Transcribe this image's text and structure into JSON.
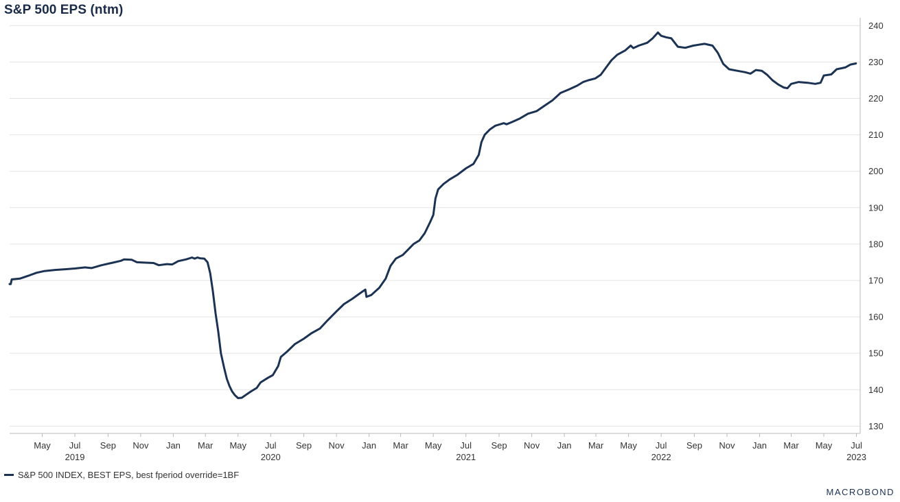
{
  "chart_data": {
    "type": "line",
    "title": "S&P 500 EPS (ntm)",
    "ylim": [
      128,
      241
    ],
    "yticks": [
      130,
      140,
      150,
      160,
      170,
      180,
      190,
      200,
      210,
      220,
      230,
      240
    ],
    "xlim": [
      "2019-03-01",
      "2023-07-08"
    ],
    "month_ticks": [
      {
        "date": "2019-05-01",
        "label": "May"
      },
      {
        "date": "2019-07-01",
        "label": "Jul"
      },
      {
        "date": "2019-09-01",
        "label": "Sep"
      },
      {
        "date": "2019-11-01",
        "label": "Nov"
      },
      {
        "date": "2020-01-01",
        "label": "Jan"
      },
      {
        "date": "2020-03-01",
        "label": "Mar"
      },
      {
        "date": "2020-05-01",
        "label": "May"
      },
      {
        "date": "2020-07-01",
        "label": "Jul"
      },
      {
        "date": "2020-09-01",
        "label": "Sep"
      },
      {
        "date": "2020-11-01",
        "label": "Nov"
      },
      {
        "date": "2021-01-01",
        "label": "Jan"
      },
      {
        "date": "2021-03-01",
        "label": "Mar"
      },
      {
        "date": "2021-05-01",
        "label": "May"
      },
      {
        "date": "2021-07-01",
        "label": "Jul"
      },
      {
        "date": "2021-09-01",
        "label": "Sep"
      },
      {
        "date": "2021-11-01",
        "label": "Nov"
      },
      {
        "date": "2022-01-01",
        "label": "Jan"
      },
      {
        "date": "2022-03-01",
        "label": "Mar"
      },
      {
        "date": "2022-05-01",
        "label": "May"
      },
      {
        "date": "2022-07-01",
        "label": "Jul"
      },
      {
        "date": "2022-09-01",
        "label": "Sep"
      },
      {
        "date": "2022-11-01",
        "label": "Nov"
      },
      {
        "date": "2023-01-01",
        "label": "Jan"
      },
      {
        "date": "2023-03-01",
        "label": "Mar"
      },
      {
        "date": "2023-05-01",
        "label": "May"
      },
      {
        "date": "2023-07-01",
        "label": "Jul"
      }
    ],
    "year_labels": [
      {
        "date": "2019-07-01",
        "label": "2019"
      },
      {
        "date": "2020-07-01",
        "label": "2020"
      },
      {
        "date": "2021-07-01",
        "label": "2021"
      },
      {
        "date": "2022-07-01",
        "label": "2022"
      },
      {
        "date": "2023-07-01",
        "label": "2023"
      }
    ],
    "grid": true,
    "legend_position": "bottom-left",
    "series": [
      {
        "name": "S&P 500 INDEX, BEST EPS, best fperiod override=1BF",
        "color": "#1b3253",
        "points": [
          [
            "2019-03-01",
            169.0
          ],
          [
            "2019-03-03",
            169.0
          ],
          [
            "2019-03-05",
            170.3
          ],
          [
            "2019-03-20",
            170.5
          ],
          [
            "2019-04-05",
            171.3
          ],
          [
            "2019-04-20",
            172.1
          ],
          [
            "2019-05-05",
            172.6
          ],
          [
            "2019-05-25",
            172.9
          ],
          [
            "2019-06-15",
            173.1
          ],
          [
            "2019-07-01",
            173.3
          ],
          [
            "2019-07-20",
            173.6
          ],
          [
            "2019-08-01",
            173.4
          ],
          [
            "2019-08-20",
            174.2
          ],
          [
            "2019-09-10",
            174.9
          ],
          [
            "2019-09-25",
            175.4
          ],
          [
            "2019-10-01",
            175.8
          ],
          [
            "2019-10-15",
            175.7
          ],
          [
            "2019-10-25",
            175.0
          ],
          [
            "2019-11-10",
            174.9
          ],
          [
            "2019-11-25",
            174.8
          ],
          [
            "2019-12-05",
            174.2
          ],
          [
            "2019-12-20",
            174.5
          ],
          [
            "2019-12-30",
            174.4
          ],
          [
            "2020-01-10",
            175.3
          ],
          [
            "2020-01-25",
            175.8
          ],
          [
            "2020-02-05",
            176.3
          ],
          [
            "2020-02-10",
            176.0
          ],
          [
            "2020-02-15",
            176.3
          ],
          [
            "2020-02-20",
            176.1
          ],
          [
            "2020-02-28",
            176.0
          ],
          [
            "2020-03-05",
            175.0
          ],
          [
            "2020-03-10",
            172.0
          ],
          [
            "2020-03-15",
            167.0
          ],
          [
            "2020-03-20",
            161.0
          ],
          [
            "2020-03-25",
            156.0
          ],
          [
            "2020-03-30",
            150.0
          ],
          [
            "2020-04-05",
            146.0
          ],
          [
            "2020-04-10",
            143.0
          ],
          [
            "2020-04-15",
            141.0
          ],
          [
            "2020-04-20",
            139.5
          ],
          [
            "2020-04-25",
            138.5
          ],
          [
            "2020-05-01",
            137.7
          ],
          [
            "2020-05-08",
            137.8
          ],
          [
            "2020-05-15",
            138.5
          ],
          [
            "2020-05-25",
            139.5
          ],
          [
            "2020-06-05",
            140.5
          ],
          [
            "2020-06-12",
            142.0
          ],
          [
            "2020-06-25",
            143.2
          ],
          [
            "2020-07-05",
            144.0
          ],
          [
            "2020-07-15",
            146.5
          ],
          [
            "2020-07-20",
            149.0
          ],
          [
            "2020-08-01",
            150.5
          ],
          [
            "2020-08-15",
            152.5
          ],
          [
            "2020-09-01",
            154.0
          ],
          [
            "2020-09-15",
            155.5
          ],
          [
            "2020-10-01",
            156.8
          ],
          [
            "2020-10-15",
            159.0
          ],
          [
            "2020-11-01",
            161.5
          ],
          [
            "2020-11-15",
            163.5
          ],
          [
            "2020-12-01",
            165.0
          ],
          [
            "2020-12-15",
            166.5
          ],
          [
            "2020-12-25",
            167.5
          ],
          [
            "2020-12-27",
            165.5
          ],
          [
            "2021-01-05",
            166.0
          ],
          [
            "2021-01-20",
            168.0
          ],
          [
            "2021-02-01",
            170.5
          ],
          [
            "2021-02-10",
            174.0
          ],
          [
            "2021-02-20",
            176.0
          ],
          [
            "2021-03-05",
            177.0
          ],
          [
            "2021-03-15",
            178.5
          ],
          [
            "2021-03-25",
            180.0
          ],
          [
            "2021-04-05",
            181.0
          ],
          [
            "2021-04-15",
            183.0
          ],
          [
            "2021-04-25",
            186.0
          ],
          [
            "2021-05-01",
            188.0
          ],
          [
            "2021-05-05",
            192.5
          ],
          [
            "2021-05-10",
            195.0
          ],
          [
            "2021-05-20",
            196.5
          ],
          [
            "2021-06-01",
            197.8
          ],
          [
            "2021-06-15",
            199.0
          ],
          [
            "2021-07-01",
            200.8
          ],
          [
            "2021-07-15",
            202.0
          ],
          [
            "2021-07-25",
            204.5
          ],
          [
            "2021-07-30",
            208.0
          ],
          [
            "2021-08-05",
            210.0
          ],
          [
            "2021-08-15",
            211.5
          ],
          [
            "2021-08-25",
            212.5
          ],
          [
            "2021-09-10",
            213.2
          ],
          [
            "2021-09-15",
            212.9
          ],
          [
            "2021-09-25",
            213.5
          ],
          [
            "2021-10-10",
            214.5
          ],
          [
            "2021-10-25",
            215.8
          ],
          [
            "2021-11-10",
            216.5
          ],
          [
            "2021-11-25",
            218.0
          ],
          [
            "2021-12-10",
            219.5
          ],
          [
            "2021-12-25",
            221.5
          ],
          [
            "2022-01-10",
            222.5
          ],
          [
            "2022-01-25",
            223.5
          ],
          [
            "2022-02-05",
            224.5
          ],
          [
            "2022-02-15",
            225.0
          ],
          [
            "2022-02-28",
            225.5
          ],
          [
            "2022-03-10",
            226.5
          ],
          [
            "2022-03-20",
            228.5
          ],
          [
            "2022-03-30",
            230.5
          ],
          [
            "2022-04-10",
            232.0
          ],
          [
            "2022-04-25",
            233.2
          ],
          [
            "2022-05-05",
            234.5
          ],
          [
            "2022-05-10",
            233.8
          ],
          [
            "2022-05-20",
            234.5
          ],
          [
            "2022-06-05",
            235.3
          ],
          [
            "2022-06-15",
            236.5
          ],
          [
            "2022-06-25",
            238.1
          ],
          [
            "2022-07-01",
            237.2
          ],
          [
            "2022-07-10",
            236.8
          ],
          [
            "2022-07-20",
            236.5
          ],
          [
            "2022-08-01",
            234.2
          ],
          [
            "2022-08-15",
            233.9
          ],
          [
            "2022-08-30",
            234.5
          ],
          [
            "2022-09-20",
            235.0
          ],
          [
            "2022-10-05",
            234.5
          ],
          [
            "2022-10-15",
            232.5
          ],
          [
            "2022-10-25",
            229.5
          ],
          [
            "2022-11-05",
            228.0
          ],
          [
            "2022-11-20",
            227.6
          ],
          [
            "2022-12-05",
            227.2
          ],
          [
            "2022-12-15",
            226.8
          ],
          [
            "2022-12-25",
            227.8
          ],
          [
            "2023-01-05",
            227.6
          ],
          [
            "2023-01-15",
            226.5
          ],
          [
            "2023-01-25",
            225.0
          ],
          [
            "2023-02-05",
            223.8
          ],
          [
            "2023-02-15",
            223.0
          ],
          [
            "2023-02-22",
            222.8
          ],
          [
            "2023-03-01",
            224.0
          ],
          [
            "2023-03-15",
            224.5
          ],
          [
            "2023-04-01",
            224.3
          ],
          [
            "2023-04-15",
            224.0
          ],
          [
            "2023-04-25",
            224.3
          ],
          [
            "2023-05-01",
            226.3
          ],
          [
            "2023-05-15",
            226.6
          ],
          [
            "2023-05-25",
            228.0
          ],
          [
            "2023-06-10",
            228.5
          ],
          [
            "2023-06-20",
            229.3
          ],
          [
            "2023-06-30",
            229.6
          ]
        ]
      }
    ]
  },
  "legend": {
    "label": "S&P 500 INDEX, BEST EPS, best fperiod override=1BF"
  },
  "branding": {
    "logo_text": "MACROBOND"
  }
}
